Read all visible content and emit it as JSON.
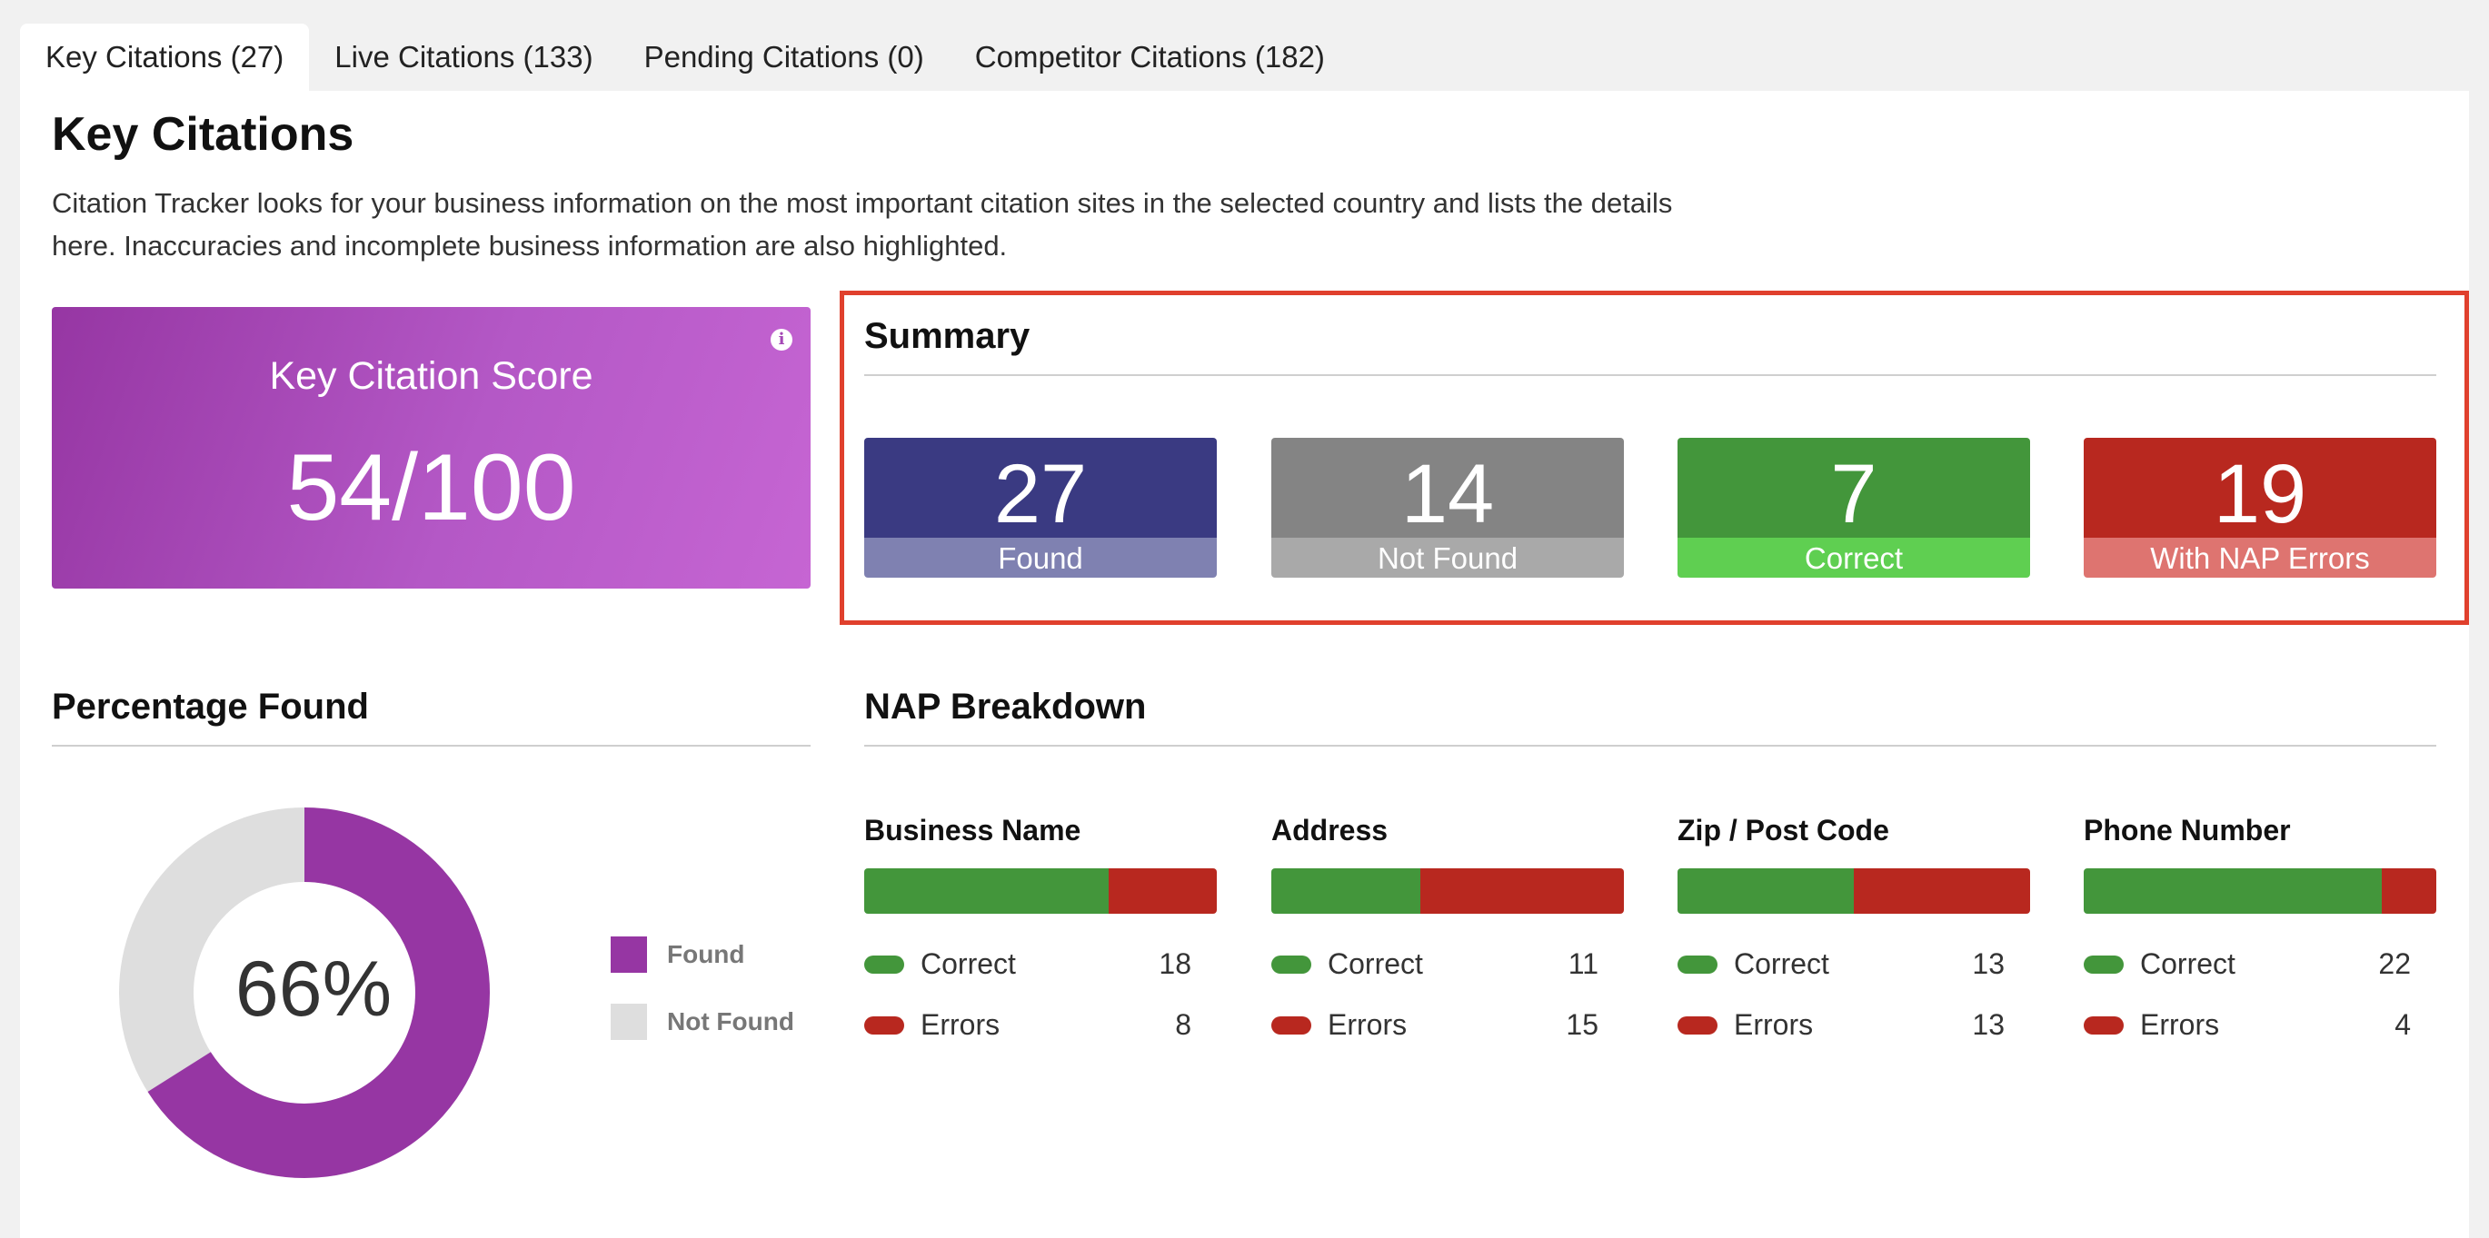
{
  "tabs": [
    {
      "label": "Key Citations (27)",
      "active": true
    },
    {
      "label": "Live Citations (133)",
      "active": false
    },
    {
      "label": "Pending Citations (0)",
      "active": false
    },
    {
      "label": "Competitor Citations (182)",
      "active": false
    }
  ],
  "page": {
    "title": "Key Citations",
    "description": "Citation Tracker looks for your business information on the most important citation sites in the selected country and lists the details here. Inaccuracies and incomplete business information are also highlighted."
  },
  "score": {
    "label": "Key Citation Score",
    "value": "54/100",
    "info_icon": "info-icon"
  },
  "summary": {
    "title": "Summary",
    "stats": [
      {
        "value": "27",
        "label": "Found",
        "color": "#3a3a82",
        "label_color": "#7f81b1"
      },
      {
        "value": "14",
        "label": "Not Found",
        "color": "#848484",
        "label_color": "#a9a9a9"
      },
      {
        "value": "7",
        "label": "Correct",
        "color": "#43963b",
        "label_color": "#5fcf51"
      },
      {
        "value": "19",
        "label": "With NAP Errors",
        "color": "#b8281f",
        "label_color": "#de7470"
      }
    ]
  },
  "percentage": {
    "title": "Percentage Found",
    "value": "66%",
    "found_fraction": 0.66,
    "legend": [
      {
        "label": "Found",
        "color": "#9636a3"
      },
      {
        "label": "Not Found",
        "color": "#dedede"
      }
    ]
  },
  "nap": {
    "title": "NAP Breakdown",
    "correct_label": "Correct",
    "errors_label": "Errors",
    "correct_color": "#43963b",
    "error_color": "#b8281f",
    "columns": [
      {
        "name": "Business Name",
        "correct": "18",
        "errors": "8"
      },
      {
        "name": "Address",
        "correct": "11",
        "errors": "15"
      },
      {
        "name": "Zip / Post Code",
        "correct": "13",
        "errors": "13"
      },
      {
        "name": "Phone Number",
        "correct": "22",
        "errors": "4"
      }
    ]
  }
}
